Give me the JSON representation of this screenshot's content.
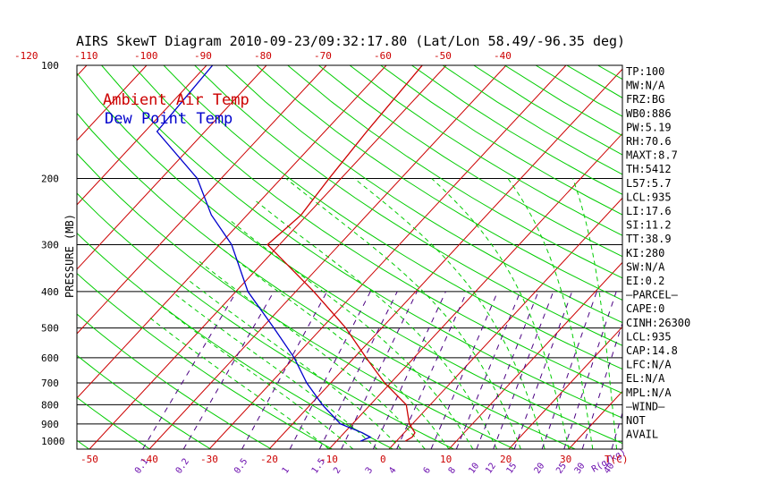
{
  "chart_data": {
    "type": "line",
    "title": "AIRS SkewT Diagram 2010-09-23/09:32:17.80 (Lat/Lon 58.49/-96.35 deg)",
    "ylabel": "PRESSURE (MB)",
    "pressure_ticks": [
      "100",
      "200",
      "300",
      "400",
      "500",
      "600",
      "700",
      "800",
      "900",
      "1000"
    ],
    "pressure_values": [
      100,
      200,
      300,
      400,
      500,
      600,
      700,
      800,
      900,
      1000
    ],
    "top_temp_ticks": [
      "-120",
      "-110",
      "-100",
      "-90",
      "-80",
      "-70",
      "-60",
      "-50",
      "-40"
    ],
    "top_temp_values": [
      -120,
      -110,
      -100,
      -90,
      -80,
      -70,
      -60,
      -50,
      -40
    ],
    "bottom_temp_ticks": [
      "-50",
      "-40",
      "-30",
      "-20",
      "-10",
      "0",
      "10",
      "20",
      "30"
    ],
    "bottom_temp_values": [
      -50,
      -40,
      -30,
      -20,
      -10,
      0,
      10,
      20,
      30
    ],
    "bottom_temp_unit": "T(C)",
    "mixing_ratio_ticks": [
      "0.1",
      "0.2",
      "0.5",
      "1",
      "1.5",
      "2",
      "3",
      "4",
      "6",
      "8",
      "10",
      "12",
      "15",
      "20",
      "25",
      "30",
      "40"
    ],
    "mixing_ratio_values": [
      0.1,
      0.2,
      0.5,
      1,
      1.5,
      2,
      3,
      4,
      6,
      8,
      10,
      12,
      15,
      20,
      25,
      30,
      40
    ],
    "mixing_ratio_unit": "R(g/kg)",
    "series": [
      {
        "name": "Ambient Air Temp",
        "color": "#cc0000",
        "points": [
          {
            "p": 1000,
            "t": 1.5
          },
          {
            "p": 975,
            "t": 2.0
          },
          {
            "p": 950,
            "t": 1.8
          },
          {
            "p": 900,
            "t": -0.5
          },
          {
            "p": 800,
            "t": -4
          },
          {
            "p": 700,
            "t": -11
          },
          {
            "p": 600,
            "t": -18
          },
          {
            "p": 500,
            "t": -26
          },
          {
            "p": 400,
            "t": -37
          },
          {
            "p": 300,
            "t": -52
          },
          {
            "p": 250,
            "t": -51
          },
          {
            "p": 200,
            "t": -52
          },
          {
            "p": 150,
            "t": -53
          },
          {
            "p": 100,
            "t": -54
          }
        ]
      },
      {
        "name": "Dew Point Temp",
        "color": "#0000cc",
        "points": [
          {
            "p": 1000,
            "t": -6
          },
          {
            "p": 975,
            "t": -5
          },
          {
            "p": 950,
            "t": -7
          },
          {
            "p": 900,
            "t": -12
          },
          {
            "p": 800,
            "t": -18
          },
          {
            "p": 700,
            "t": -24
          },
          {
            "p": 600,
            "t": -30
          },
          {
            "p": 500,
            "t": -38
          },
          {
            "p": 400,
            "t": -48
          },
          {
            "p": 300,
            "t": -58
          },
          {
            "p": 250,
            "t": -66
          },
          {
            "p": 200,
            "t": -74
          },
          {
            "p": 150,
            "t": -88
          },
          {
            "p": 100,
            "t": -89
          }
        ]
      }
    ],
    "legend": [
      "Ambient Air Temp",
      "Dew Point Temp"
    ],
    "legend_placement": "top-left",
    "grid": true,
    "colors": {
      "isotherm": "#cc0000",
      "dry_adiabat": "#00cc00",
      "moist_adiabat": "#00cc00",
      "mixing_ratio": "#4b0082",
      "isobar": "#000000",
      "temperature": "#cc0000",
      "dewpoint": "#0000cc"
    }
  },
  "indices": [
    "TP:100",
    "MW:N/A",
    "FRZ:BG",
    "WB0:886",
    "PW:5.19",
    "RH:70.6",
    "MAXT:8.7",
    "TH:5412",
    "L57:5.7",
    "LCL:935",
    "LI:17.6",
    "SI:11.2",
    "TT:38.9",
    "KI:280",
    "SW:N/A",
    "EI:0.2",
    "—PARCEL—",
    "CAPE:0",
    "CINH:26300",
    "LCL:935",
    "CAP:14.8",
    "LFC:N/A",
    "EL:N/A",
    "MPL:N/A",
    "—WIND—",
    "NOT",
    "AVAIL"
  ]
}
